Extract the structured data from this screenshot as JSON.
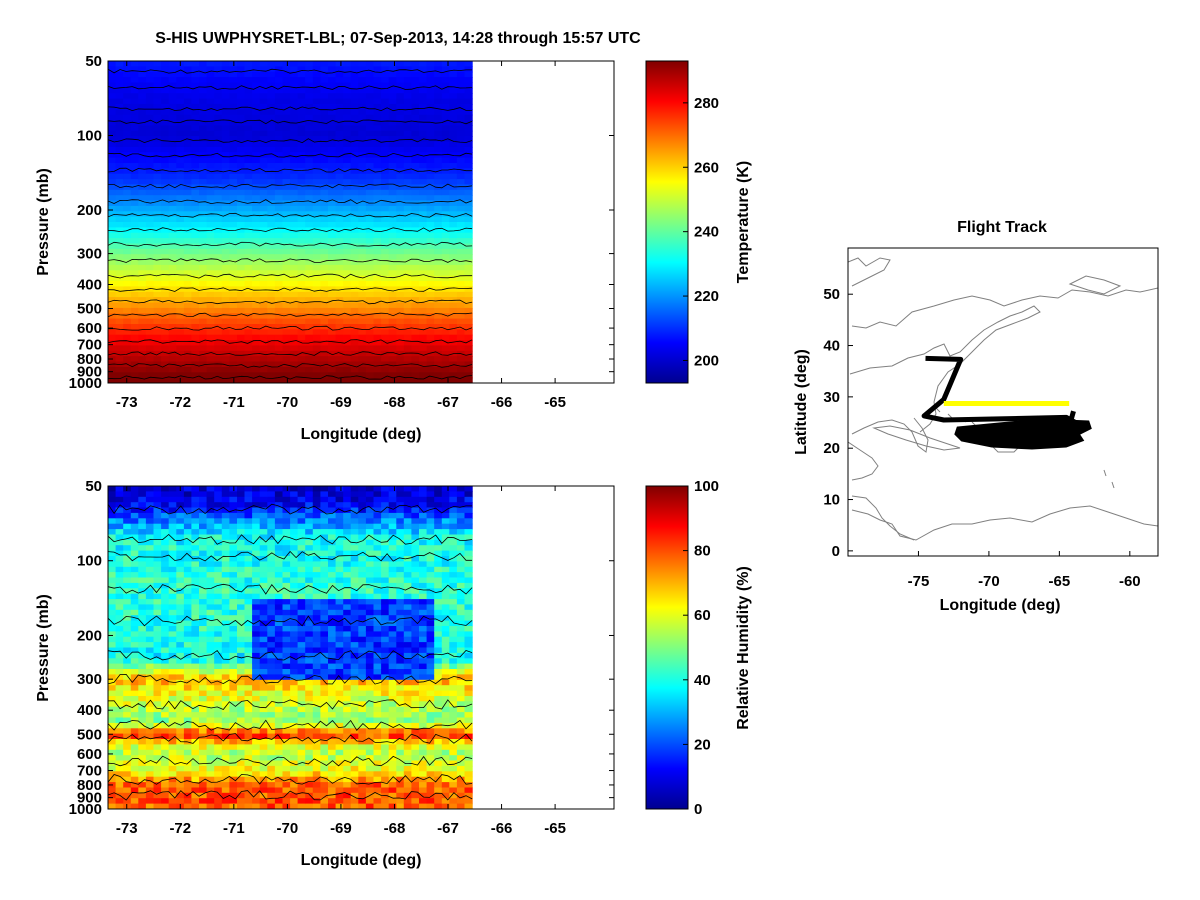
{
  "title": "S-HIS UWPHYSRET-LBL;   07-Sep-2013, 14:28 through 15:57 UTC",
  "chart_data": [
    {
      "type": "heatmap",
      "id": "temperature",
      "xlabel": "Longitude (deg)",
      "ylabel": "Pressure (mb)",
      "xlim": [
        -73.35,
        -63.9
      ],
      "xticks": [
        -73,
        -72,
        -71,
        -70,
        -69,
        -68,
        -67,
        -66,
        -65
      ],
      "ylim": [
        1000,
        50
      ],
      "yscale": "log",
      "yticks": [
        50,
        100,
        200,
        300,
        400,
        500,
        600,
        700,
        800,
        900,
        1000
      ],
      "data_extent_lon": [
        -73.35,
        -66.55
      ],
      "colorbar": {
        "label": "Temperature (K)",
        "range": [
          193,
          293
        ],
        "ticks": [
          200,
          220,
          240,
          260,
          280
        ]
      },
      "profile_pressure": [
        50,
        70,
        100,
        150,
        200,
        250,
        300,
        400,
        500,
        600,
        700,
        800,
        900,
        1000
      ],
      "profile_value": [
        208,
        203,
        201,
        210,
        222,
        232,
        242,
        256,
        267,
        276,
        283,
        288,
        292,
        296
      ],
      "contours": "black contour lines every ~5 K"
    },
    {
      "type": "heatmap",
      "id": "relative_humidity",
      "xlabel": "Longitude (deg)",
      "ylabel": "Pressure (mb)",
      "xlim": [
        -73.35,
        -63.9
      ],
      "xticks": [
        -73,
        -72,
        -71,
        -70,
        -69,
        -68,
        -67,
        -66,
        -65
      ],
      "ylim": [
        1000,
        50
      ],
      "yscale": "log",
      "yticks": [
        50,
        100,
        200,
        300,
        400,
        500,
        600,
        700,
        800,
        900,
        1000
      ],
      "data_extent_lon": [
        -73.35,
        -66.55
      ],
      "colorbar": {
        "label": "Relative Humidity (%)",
        "range": [
          0,
          100
        ],
        "ticks": [
          0,
          20,
          40,
          60,
          80,
          100
        ]
      },
      "profile_pressure": [
        50,
        60,
        80,
        100,
        150,
        200,
        250,
        300,
        350,
        400,
        450,
        500,
        550,
        600,
        700,
        800,
        900,
        1000
      ],
      "profile_value": [
        6,
        12,
        38,
        40,
        42,
        40,
        38,
        70,
        60,
        55,
        50,
        85,
        62,
        55,
        62,
        78,
        80,
        78
      ],
      "dry_layer": {
        "lon": [
          -70.6,
          -67.2
        ],
        "pressure": [
          140,
          300
        ],
        "value": 18
      }
    },
    {
      "type": "line",
      "id": "flight_track",
      "title": "Flight Track",
      "xlabel": "Longitude (deg)",
      "ylabel": "Latitude (deg)",
      "xlim": [
        -80,
        -58
      ],
      "ylim": [
        -1,
        59
      ],
      "xticks": [
        -75,
        -70,
        -65,
        -60
      ],
      "yticks": [
        0,
        10,
        20,
        30,
        40,
        50
      ],
      "series": [
        {
          "color": "#000000",
          "lon": [
            -74.5,
            -72.0,
            -73.2,
            -74.6,
            -73.2,
            -64.5,
            -63.2,
            -64.5,
            -64.0
          ],
          "lat": [
            37.5,
            37.3,
            29.5,
            26.3,
            25.5,
            26.0,
            24.0,
            22.3,
            27.2
          ]
        },
        {
          "color": "#ffff00",
          "lon": [
            -73.2,
            -64.3
          ],
          "lat": [
            28.7,
            28.7
          ]
        }
      ],
      "coastline_color": "#808080"
    }
  ]
}
